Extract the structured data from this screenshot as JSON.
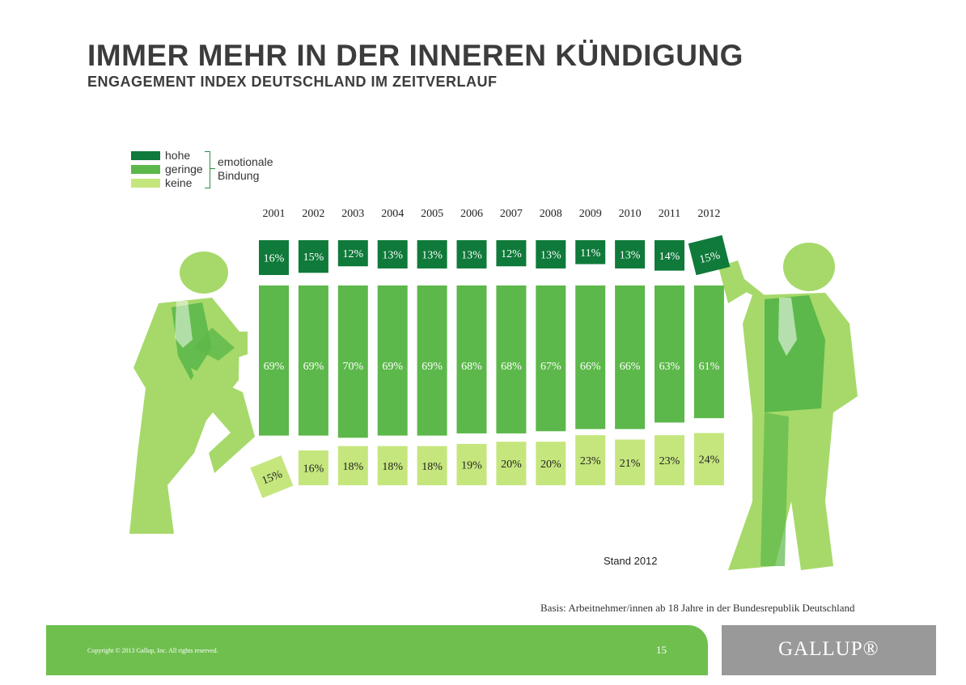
{
  "header": {
    "title": "IMMER MEHR IN DER INNEREN KÜNDIGUNG",
    "subtitle": "ENGAGEMENT INDEX DEUTSCHLAND IM ZEITVERLAUF"
  },
  "legend": {
    "items": [
      {
        "label": "hohe",
        "color": "#0f7a3a"
      },
      {
        "label": "geringe",
        "color": "#5cb84a"
      },
      {
        "label": "keine",
        "color": "#c5e67d"
      }
    ],
    "group_line1": "emotionale",
    "group_line2": "Bindung"
  },
  "chart_data": {
    "type": "bar",
    "categories": [
      "2001",
      "2002",
      "2003",
      "2004",
      "2005",
      "2006",
      "2007",
      "2008",
      "2009",
      "2010",
      "2011",
      "2012"
    ],
    "series": [
      {
        "name": "hohe",
        "values": [
          16,
          15,
          12,
          13,
          13,
          13,
          12,
          13,
          11,
          13,
          14,
          15
        ],
        "labels": [
          "16%",
          "15%",
          "12%",
          "13%",
          "13%",
          "13%",
          "12%",
          "13%",
          "11%",
          "13%",
          "14%",
          "15%"
        ],
        "color": "#0f7a3a"
      },
      {
        "name": "geringe",
        "values": [
          69,
          69,
          70,
          69,
          69,
          68,
          68,
          67,
          66,
          66,
          63,
          61
        ],
        "labels": [
          "69%",
          "69%",
          "70%",
          "69%",
          "69%",
          "68%",
          "68%",
          "67%",
          "66%",
          "66%",
          "63%",
          "61%"
        ],
        "color": "#5cb84a"
      },
      {
        "name": "keine",
        "values": [
          15,
          16,
          18,
          18,
          18,
          19,
          20,
          20,
          23,
          21,
          23,
          24
        ],
        "labels": [
          "15%",
          "16%",
          "18%",
          "18%",
          "18%",
          "19%",
          "20%",
          "20%",
          "23%",
          "21%",
          "23%",
          "24%"
        ],
        "color": "#c5e67d"
      }
    ]
  },
  "illustration": {
    "figure_color": "#a6d96a",
    "figure_dark": "#5cb84a"
  },
  "notes": {
    "stand": "Stand 2012",
    "basis": "Basis: Arbeitnehmer/innen ab 18 Jahre in der Bundesrepublik Deutschland"
  },
  "footer": {
    "copyright": "Copyright © 2013 Gallup, Inc. All rights reserved.",
    "page_number": "15",
    "logo_text": "GALLUP®",
    "green": "#6fbf4f",
    "grey": "#999999"
  }
}
